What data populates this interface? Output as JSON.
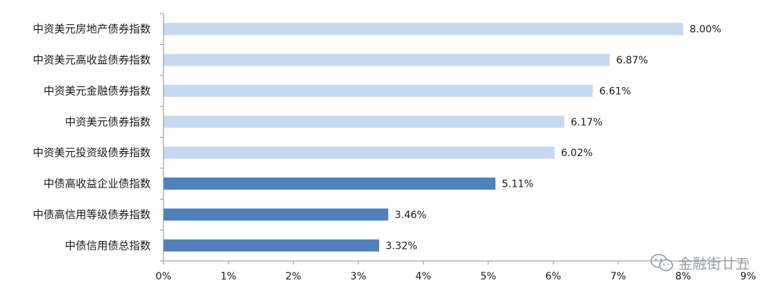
{
  "chart_data": {
    "type": "bar",
    "orientation": "horizontal",
    "categories": [
      "中资美元房地产债券指数",
      "中资美元高收益债券指数",
      "中资美元金融债券指数",
      "中资美元债券指数",
      "中资美元投资级债券指数",
      "中债高收益企业债指数",
      "中债高信用等级债券指数",
      "中债信用债总指数"
    ],
    "values": [
      8.0,
      6.87,
      6.61,
      6.17,
      6.02,
      5.11,
      3.46,
      3.32
    ],
    "value_labels": [
      "8.00%",
      "6.87%",
      "6.61%",
      "6.17%",
      "6.02%",
      "5.11%",
      "3.46%",
      "3.32%"
    ],
    "bar_colors": [
      "#c6d9f1",
      "#c6d9f1",
      "#c6d9f1",
      "#c6d9f1",
      "#c6d9f1",
      "#4f81bd",
      "#4f81bd",
      "#4f81bd"
    ],
    "xlim": [
      0,
      9
    ],
    "x_ticks": [
      "0%",
      "1%",
      "2%",
      "3%",
      "4%",
      "5%",
      "6%",
      "7%",
      "8%",
      "9%"
    ],
    "grid": false
  },
  "watermark": {
    "text": "金融街廿五",
    "icon": "wechat-icon"
  }
}
